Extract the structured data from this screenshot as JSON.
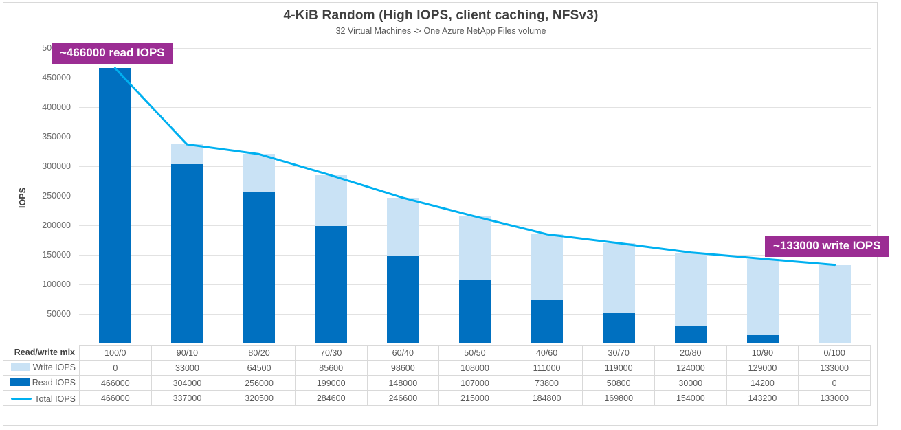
{
  "chart_data": {
    "type": "bar",
    "variant": "stacked-column-with-line-overlay",
    "title": "4-KiB Random (High IOPS, client caching, NFSv3)",
    "subtitle": "32 Virtual Machines -> One Azure NetApp Files volume",
    "ylabel": "IOPS",
    "ylim": [
      0,
      500000
    ],
    "ytick_step": 50000,
    "grid": true,
    "legend_position": "table-left-column",
    "category_axis_label": "Read/write mix",
    "categories": [
      "100/0",
      "90/10",
      "80/20",
      "70/30",
      "60/40",
      "50/50",
      "40/60",
      "30/70",
      "20/80",
      "10/90",
      "0/100"
    ],
    "series": [
      {
        "name": "Write IOPS",
        "type": "bar",
        "stack_position": "top",
        "color": "#c9e2f5",
        "values": [
          0,
          33000,
          64500,
          85600,
          98600,
          108000,
          111000,
          119000,
          124000,
          129000,
          133000
        ]
      },
      {
        "name": "Read IOPS",
        "type": "bar",
        "stack_position": "bottom",
        "color": "#0070c0",
        "values": [
          466000,
          304000,
          256000,
          199000,
          148000,
          107000,
          73800,
          50800,
          30000,
          14200,
          0
        ]
      },
      {
        "name": "Total IOPS",
        "type": "line",
        "color": "#00b0f0",
        "values": [
          466000,
          337000,
          320500,
          284600,
          246600,
          215000,
          184800,
          169800,
          154000,
          143200,
          133000
        ]
      }
    ],
    "annotations": [
      {
        "text": "~466000 read IOPS",
        "bg": "#9b2d93",
        "text_color": "#ffffff",
        "position": "top-left"
      },
      {
        "text": "~133000 write IOPS",
        "bg": "#9b2d93",
        "text_color": "#ffffff",
        "position": "right"
      }
    ]
  }
}
